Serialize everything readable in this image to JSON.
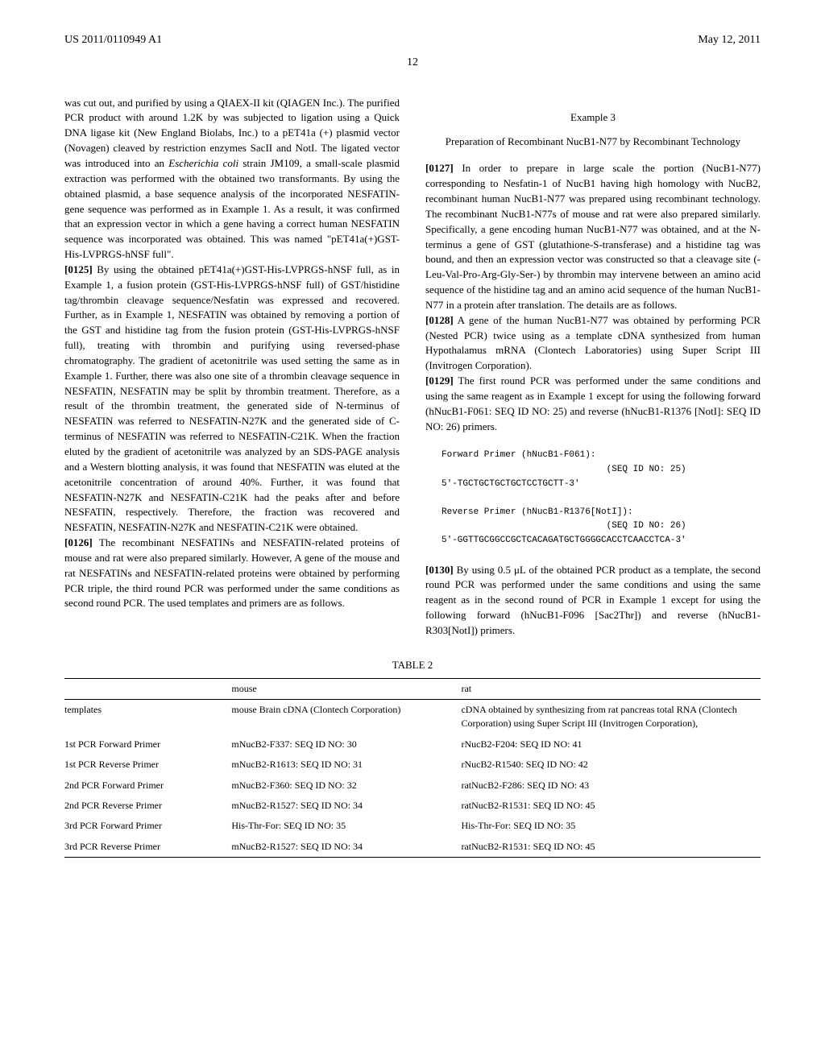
{
  "header": {
    "left": "US 2011/0110949 A1",
    "right": "May 12, 2011"
  },
  "page_number": "12",
  "left_col": {
    "para_cont": "was cut out, and purified by using a QIAEX-II kit (QIAGEN Inc.). The purified PCR product with around 1.2K by was subjected to ligation using a Quick DNA ligase kit (New England Biolabs, Inc.) to a pET41a (+) plasmid vector (Novagen) cleaved by restriction enzymes SacII and NotI. The ligated vector was introduced into an ",
    "para_cont_italic": "Escherichia coli",
    "para_cont2": " strain JM109, a small-scale plasmid extraction was performed with the obtained two transformants. By using the obtained plasmid, a base sequence analysis of the incorporated NESFATIN-gene sequence was performed as in Example 1. As a result, it was confirmed that an expression vector in which a gene having a correct human NESFATIN sequence was incorporated was obtained. This was named \"pET41a(+)GST-His-LVPRGS-hNSF full\".",
    "p0125_num": "[0125]",
    "p0125": " By using the obtained pET41a(+)GST-His-LVPRGS-hNSF full, as in Example 1, a fusion protein (GST-His-LVPRGS-hNSF full) of GST/histidine tag/thrombin cleavage sequence/Nesfatin was expressed and recovered. Further, as in Example 1, NESFATIN was obtained by removing a portion of the GST and histidine tag from the fusion protein (GST-His-LVPRGS-hNSF full), treating with thrombin and purifying using reversed-phase chromatography. The gradient of acetonitrile was used setting the same as in Example 1. Further, there was also one site of a thrombin cleavage sequence in NESFATIN, NESFATIN may be split by thrombin treatment. Therefore, as a result of the thrombin treatment, the generated side of N-terminus of NESFATIN was referred to NESFATIN-N27K and the generated side of C-terminus of NESFATIN was referred to NESFATIN-C21K. When the fraction eluted by the gradient of acetonitrile was analyzed by an SDS-PAGE analysis and a Western blotting analysis, it was found that NESFATIN was eluted at the acetonitrile concentration of around 40%. Further, it was found that NESFATIN-N27K and NESFATIN-C21K had the peaks after and before NESFATIN, respectively. Therefore, the fraction was recovered and NESFATIN, NESFATIN-N27K and NESFATIN-C21K were obtained.",
    "p0126_num": "[0126]",
    "p0126": " The recombinant NESFATINs and NESFATIN-related proteins of mouse and rat were also prepared similarly. However, A gene of the mouse and rat NESFATINs and NESFATIN-related proteins were obtained by performing PCR triple, the third round PCR was performed under the same conditions as second round PCR. The used templates and primers are as follows."
  },
  "right_col": {
    "example_title": "Example 3",
    "example_subtitle": "Preparation of Recombinant NucB1-N77 by Recombinant Technology",
    "p0127_num": "[0127]",
    "p0127": " In order to prepare in large scale the portion (NucB1-N77) corresponding to Nesfatin-1 of NucB1 having high homology with NucB2, recombinant human NucB1-N77 was prepared using recombinant technology. The recombinant NucB1-N77s of mouse and rat were also prepared similarly. Specifically, a gene encoding human NucB1-N77 was obtained, and at the N-terminus a gene of GST (glutathione-S-transferase) and a histidine tag was bound, and then an expression vector was constructed so that a cleavage site (-Leu-Val-Pro-Arg-Gly-Ser-) by thrombin may intervene between an amino acid sequence of the histidine tag and an amino acid sequence of the human NucB1-N77 in a protein after translation. The details are as follows.",
    "p0128_num": "[0128]",
    "p0128": " A gene of the human NucB1-N77 was obtained by performing PCR (Nested PCR) twice using as a template cDNA synthesized from human Hypothalamus mRNA (Clontech Laboratories) using Super Script III (Invitrogen Corporation).",
    "p0129_num": "[0129]",
    "p0129": " The first round PCR was performed under the same conditions and using the same reagent as in Example 1 except for using the following forward (hNucB1-F061: SEQ ID NO: 25) and reverse (hNucB1-R1376 [NotI]: SEQ ID NO: 26) primers.",
    "primer_block": "Forward Primer (hNucB1-F061):\n                               (SEQ ID NO: 25)\n5'-TGCTGCTGCTGCTCCTGCTT-3'\n\nReverse Primer (hNucB1-R1376[NotI]):\n                               (SEQ ID NO: 26)\n5'-GGTTGCGGCCGCTCACAGATGCTGGGGCACCTCAACCTCA-3'",
    "p0130_num": "[0130]",
    "p0130": " By using 0.5 μL of the obtained PCR product as a template, the second round PCR was performed under the same conditions and using the same reagent as in the second round of PCR in Example 1 except for using the following forward (hNucB1-F096 [Sac2Thr]) and reverse (hNucB1-R303[NotI]) primers."
  },
  "table": {
    "title": "TABLE 2",
    "columns": [
      "",
      "mouse",
      "rat"
    ],
    "rows": [
      [
        "templates",
        "mouse Brain cDNA (Clontech Corporation)",
        "cDNA obtained by synthesizing from rat pancreas total RNA (Clontech Corporation) using Super Script III (Invitrogen Corporation),"
      ],
      [
        "1st PCR Forward Primer",
        "mNucB2-F337: SEQ ID NO: 30",
        "rNucB2-F204: SEQ ID NO: 41"
      ],
      [
        "1st PCR Reverse Primer",
        "mNucB2-R1613: SEQ ID NO: 31",
        "rNucB2-R1540: SEQ ID NO: 42"
      ],
      [
        "2nd PCR Forward Primer",
        "mNucB2-F360: SEQ ID NO: 32",
        "ratNucB2-F286: SEQ ID NO: 43"
      ],
      [
        "2nd PCR Reverse Primer",
        "mNucB2-R1527: SEQ ID NO: 34",
        "ratNucB2-R1531: SEQ ID NO: 45"
      ],
      [
        "3rd PCR Forward Primer",
        "His-Thr-For: SEQ ID NO: 35",
        "His-Thr-For: SEQ ID NO: 35"
      ],
      [
        "3rd PCR Reverse Primer",
        "mNucB2-R1527: SEQ ID NO: 34",
        "ratNucB2-R1531: SEQ ID NO: 45"
      ]
    ]
  }
}
